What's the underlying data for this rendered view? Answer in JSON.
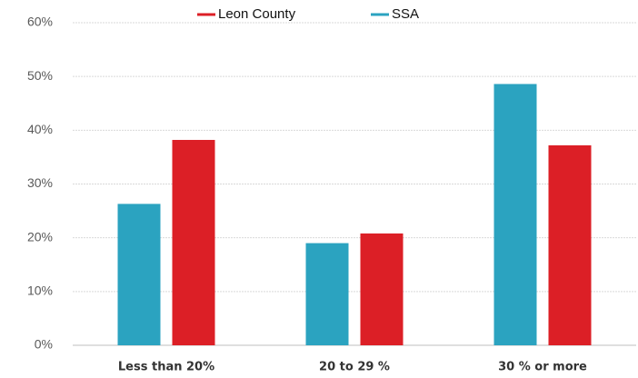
{
  "chart_data": {
    "type": "bar",
    "categories": [
      "Less than 20%",
      "20 to 29 %",
      "30 % or more"
    ],
    "series": [
      {
        "name": "Leon County",
        "color": "#dc1f26",
        "values": [
          38.2,
          20.8,
          37.2
        ]
      },
      {
        "name": "SSA",
        "color": "#2ba3c0",
        "values": [
          26.3,
          19,
          48.6
        ]
      }
    ],
    "ylim": [
      0,
      60
    ],
    "yticks": [
      {
        "value": 0,
        "label": "0%"
      },
      {
        "value": 10,
        "label": "10%"
      },
      {
        "value": 20,
        "label": "20%"
      },
      {
        "value": 30,
        "label": "30%"
      },
      {
        "value": 40,
        "label": "40%"
      },
      {
        "value": 50,
        "label": "50%"
      },
      {
        "value": 60,
        "label": "60%"
      }
    ],
    "grid": true,
    "legend": "top"
  }
}
